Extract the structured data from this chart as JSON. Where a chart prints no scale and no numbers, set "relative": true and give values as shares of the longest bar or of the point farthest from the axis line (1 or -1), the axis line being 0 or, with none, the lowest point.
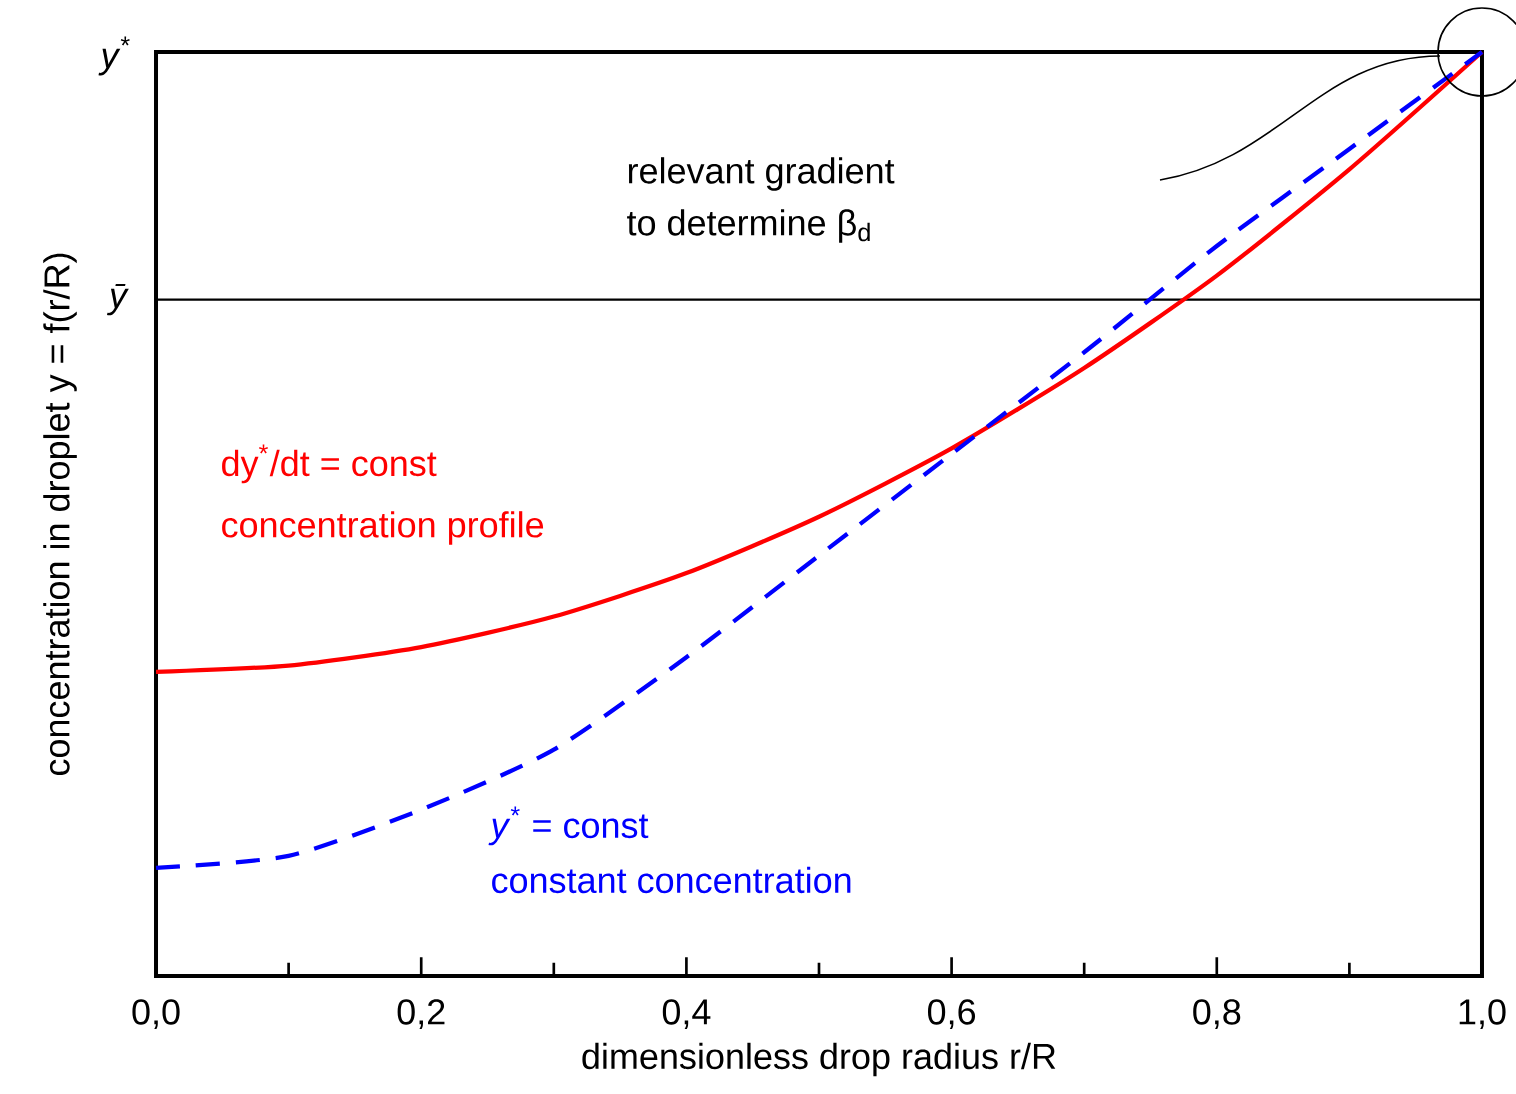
{
  "chart_data": {
    "type": "line",
    "relative": true,
    "xlabel": "dimensionless drop radius r/R",
    "ylabel": "concentration in droplet y = f(r/R)",
    "x": [
      0,
      0.1,
      0.2,
      0.3,
      0.4,
      0.5,
      0.6,
      0.7,
      0.8,
      0.9,
      1.0
    ],
    "xlim": [
      0,
      1
    ],
    "xticks": [
      {
        "value": 0,
        "label": "0,0"
      },
      {
        "value": 0.1,
        "label": null
      },
      {
        "value": 0.2,
        "label": "0,2"
      },
      {
        "value": 0.3,
        "label": null
      },
      {
        "value": 0.4,
        "label": "0,4"
      },
      {
        "value": 0.5,
        "label": null
      },
      {
        "value": 0.6,
        "label": "0,6"
      },
      {
        "value": 0.7,
        "label": null
      },
      {
        "value": 0.8,
        "label": "0,8"
      },
      {
        "value": 0.9,
        "label": null
      },
      {
        "value": 1.0,
        "label": "1,0"
      }
    ],
    "grid": false,
    "series": [
      {
        "name": "dy$^{*}$/dt = const",
        "color": "#ff0000",
        "line_style": "solid",
        "values": [
          0.329,
          0.336,
          0.356,
          0.389,
          0.436,
          0.497,
          0.571,
          0.658,
          0.758,
          0.873,
          1.0
        ]
      },
      {
        "name": "*y*$^{*}$ = const",
        "color": "#0000ff",
        "line_style": "dashed",
        "values": [
          0.117,
          0.13,
          0.18,
          0.245,
          0.345,
          0.455,
          0.565,
          0.675,
          0.79,
          0.895,
          1.0
        ]
      }
    ],
    "ref_lines": [
      {
        "axis": "y",
        "value": 0.732,
        "label": "*ȳ*",
        "color": "#000000"
      }
    ],
    "annotations": [
      "*y*$^{*}$",
      "relevant gradient",
      "to determine β$_{d}$",
      "concentration profile",
      "constant concentration"
    ]
  }
}
